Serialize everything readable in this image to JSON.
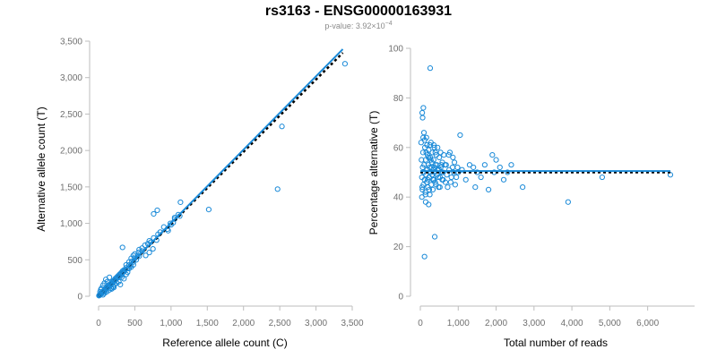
{
  "header": {
    "title": "rs3163 - ENSG00000163931",
    "pvalue_label": "p-value: 3.92×10",
    "pvalue_exponent": "−4"
  },
  "colors": {
    "points": "#1a8ad8",
    "fit_line": "#1a8ad8",
    "reference_line": "#000000",
    "axis": "#bdbdbd",
    "tick_text": "#707070"
  },
  "chart_data": [
    {
      "type": "scatter",
      "title": "",
      "xlabel": "Reference allele count (C)",
      "ylabel": "Alternative allele count (T)",
      "xlim": [
        0,
        3500
      ],
      "ylim": [
        0,
        3500
      ],
      "xticks": [
        0,
        500,
        1000,
        1500,
        2000,
        2500,
        3000,
        3500
      ],
      "yticks": [
        0,
        500,
        1000,
        1500,
        2000,
        2500,
        3000,
        3500
      ],
      "xtick_labels": [
        "0",
        "500",
        "1,000",
        "1,500",
        "2,000",
        "2,500",
        "3,000",
        "3,500"
      ],
      "ytick_labels": [
        "0",
        "500",
        "1,000",
        "1,500",
        "2,000",
        "2,500",
        "3,000",
        "3,500"
      ],
      "grid": false,
      "fit_line": {
        "x": [
          0,
          3370
        ],
        "y": [
          0,
          3390
        ]
      },
      "reference_line": {
        "x": [
          0,
          3370
        ],
        "y": [
          0,
          3340
        ],
        "style": "dashed"
      },
      "points": [
        [
          5,
          8
        ],
        [
          10,
          12
        ],
        [
          15,
          20
        ],
        [
          20,
          18
        ],
        [
          25,
          30
        ],
        [
          30,
          28
        ],
        [
          35,
          40
        ],
        [
          40,
          35
        ],
        [
          45,
          50
        ],
        [
          50,
          48
        ],
        [
          55,
          60
        ],
        [
          60,
          55
        ],
        [
          65,
          70
        ],
        [
          70,
          72
        ],
        [
          75,
          65
        ],
        [
          80,
          85
        ],
        [
          85,
          90
        ],
        [
          90,
          80
        ],
        [
          95,
          100
        ],
        [
          100,
          105
        ],
        [
          105,
          95
        ],
        [
          110,
          120
        ],
        [
          115,
          110
        ],
        [
          120,
          130
        ],
        [
          125,
          118
        ],
        [
          130,
          140
        ],
        [
          140,
          135
        ],
        [
          150,
          160
        ],
        [
          160,
          150
        ],
        [
          170,
          175
        ],
        [
          180,
          170
        ],
        [
          190,
          200
        ],
        [
          200,
          190
        ],
        [
          210,
          215
        ],
        [
          220,
          210
        ],
        [
          230,
          240
        ],
        [
          240,
          235
        ],
        [
          250,
          260
        ],
        [
          260,
          250
        ],
        [
          270,
          280
        ],
        [
          280,
          270
        ],
        [
          290,
          300
        ],
        [
          300,
          295
        ],
        [
          310,
          320
        ],
        [
          320,
          310
        ],
        [
          330,
          345
        ],
        [
          340,
          330
        ],
        [
          350,
          360
        ],
        [
          360,
          350
        ],
        [
          380,
          390
        ],
        [
          400,
          380
        ],
        [
          420,
          430
        ],
        [
          440,
          420
        ],
        [
          460,
          480
        ],
        [
          480,
          470
        ],
        [
          500,
          520
        ],
        [
          520,
          500
        ],
        [
          540,
          560
        ],
        [
          560,
          550
        ],
        [
          600,
          620
        ],
        [
          20,
          60
        ],
        [
          30,
          90
        ],
        [
          40,
          110
        ],
        [
          60,
          150
        ],
        [
          80,
          180
        ],
        [
          100,
          230
        ],
        [
          120,
          200
        ],
        [
          150,
          260
        ],
        [
          170,
          110
        ],
        [
          200,
          130
        ],
        [
          220,
          160
        ],
        [
          250,
          180
        ],
        [
          60,
          20
        ],
        [
          80,
          40
        ],
        [
          110,
          60
        ],
        [
          140,
          80
        ],
        [
          180,
          100
        ],
        [
          210,
          120
        ],
        [
          280,
          200
        ],
        [
          300,
          160
        ],
        [
          320,
          260
        ],
        [
          350,
          240
        ],
        [
          380,
          300
        ],
        [
          400,
          330
        ],
        [
          420,
          380
        ],
        [
          450,
          400
        ],
        [
          480,
          430
        ],
        [
          380,
          430
        ],
        [
          420,
          470
        ],
        [
          450,
          520
        ],
        [
          480,
          560
        ],
        [
          500,
          580
        ],
        [
          550,
          600
        ],
        [
          330,
          670
        ],
        [
          560,
          640
        ],
        [
          600,
          660
        ],
        [
          640,
          700
        ],
        [
          680,
          720
        ],
        [
          700,
          760
        ],
        [
          720,
          740
        ],
        [
          650,
          560
        ],
        [
          700,
          600
        ],
        [
          750,
          650
        ],
        [
          800,
          770
        ],
        [
          760,
          800
        ],
        [
          820,
          850
        ],
        [
          850,
          880
        ],
        [
          900,
          950
        ],
        [
          950,
          920
        ],
        [
          990,
          1000
        ],
        [
          1000,
          980
        ],
        [
          1050,
          1080
        ],
        [
          1100,
          1120
        ],
        [
          1120,
          1100
        ],
        [
          760,
          1130
        ],
        [
          810,
          1180
        ],
        [
          1130,
          1290
        ],
        [
          960,
          900
        ],
        [
          1030,
          1010
        ],
        [
          1050,
          1060
        ],
        [
          1520,
          1190
        ],
        [
          2470,
          1470
        ],
        [
          2530,
          2330
        ],
        [
          3400,
          3190
        ]
      ]
    },
    {
      "type": "scatter",
      "title": "",
      "xlabel": "Total number of reads",
      "ylabel": "Percentage alternative (T)",
      "xlim": [
        0,
        6600
      ],
      "ylim": [
        0,
        100
      ],
      "xticks": [
        0,
        1000,
        2000,
        3000,
        4000,
        5000,
        6000
      ],
      "yticks": [
        0,
        20,
        40,
        60,
        80,
        100
      ],
      "xtick_labels": [
        "0",
        "1,000",
        "2,000",
        "3,000",
        "4,000",
        "5,000",
        "6,000"
      ],
      "ytick_labels": [
        "0",
        "20",
        "40",
        "60",
        "80",
        "100"
      ],
      "grid": false,
      "fit_line": {
        "x": [
          0,
          6600
        ],
        "y": [
          50.5,
          50.5
        ]
      },
      "reference_line": {
        "x": [
          0,
          6600
        ],
        "y": [
          50,
          50
        ],
        "style": "dashed"
      },
      "points": [
        [
          260,
          92
        ],
        [
          80,
          76
        ],
        [
          50,
          74
        ],
        [
          60,
          72
        ],
        [
          110,
          16
        ],
        [
          380,
          24
        ],
        [
          140,
          38
        ],
        [
          220,
          37
        ],
        [
          3900,
          38
        ],
        [
          20,
          62
        ],
        [
          30,
          55
        ],
        [
          40,
          48
        ],
        [
          50,
          44
        ],
        [
          60,
          52
        ],
        [
          70,
          58
        ],
        [
          80,
          45
        ],
        [
          90,
          50
        ],
        [
          100,
          53
        ],
        [
          110,
          47
        ],
        [
          120,
          60
        ],
        [
          130,
          42
        ],
        [
          140,
          55
        ],
        [
          150,
          49
        ],
        [
          160,
          64
        ],
        [
          170,
          46
        ],
        [
          180,
          51
        ],
        [
          190,
          57
        ],
        [
          200,
          44
        ],
        [
          210,
          53
        ],
        [
          220,
          59
        ],
        [
          230,
          48
        ],
        [
          240,
          52
        ],
        [
          250,
          41
        ],
        [
          260,
          56
        ],
        [
          270,
          50
        ],
        [
          280,
          62
        ],
        [
          290,
          45
        ],
        [
          300,
          54
        ],
        [
          310,
          49
        ],
        [
          320,
          58
        ],
        [
          330,
          43
        ],
        [
          340,
          51
        ],
        [
          350,
          55
        ],
        [
          360,
          47
        ],
        [
          370,
          60
        ],
        [
          380,
          52
        ],
        [
          390,
          46
        ],
        [
          400,
          53
        ],
        [
          420,
          57
        ],
        [
          440,
          49
        ],
        [
          460,
          51
        ],
        [
          480,
          44
        ],
        [
          500,
          56
        ],
        [
          520,
          48
        ],
        [
          540,
          52
        ],
        [
          560,
          50
        ],
        [
          580,
          54
        ],
        [
          600,
          47
        ],
        [
          650,
          53
        ],
        [
          700,
          49
        ],
        [
          750,
          57
        ],
        [
          800,
          46
        ],
        [
          850,
          52
        ],
        [
          900,
          54
        ],
        [
          950,
          48
        ],
        [
          1000,
          50
        ],
        [
          1050,
          65
        ],
        [
          1100,
          51
        ],
        [
          1200,
          47
        ],
        [
          1300,
          53
        ],
        [
          1400,
          52
        ],
        [
          1450,
          44
        ],
        [
          1500,
          50
        ],
        [
          1600,
          48
        ],
        [
          1700,
          53
        ],
        [
          1800,
          43
        ],
        [
          1900,
          57
        ],
        [
          1950,
          50
        ],
        [
          2000,
          55
        ],
        [
          2100,
          52
        ],
        [
          2200,
          47
        ],
        [
          2300,
          50
        ],
        [
          2400,
          53
        ],
        [
          2700,
          44
        ],
        [
          4800,
          48
        ],
        [
          6600,
          49
        ],
        [
          40,
          40
        ],
        [
          55,
          43
        ],
        [
          75,
          64
        ],
        [
          95,
          66
        ],
        [
          115,
          63
        ],
        [
          135,
          41
        ],
        [
          155,
          58
        ],
        [
          175,
          61
        ],
        [
          195,
          47
        ],
        [
          215,
          56
        ],
        [
          235,
          43
        ],
        [
          255,
          61
        ],
        [
          275,
          55
        ],
        [
          295,
          52
        ],
        [
          315,
          49
        ],
        [
          335,
          47
        ],
        [
          355,
          61
        ],
        [
          375,
          50
        ],
        [
          395,
          58
        ],
        [
          415,
          45
        ],
        [
          435,
          53
        ],
        [
          455,
          60
        ],
        [
          475,
          48
        ],
        [
          495,
          51
        ],
        [
          515,
          44
        ],
        [
          535,
          58
        ],
        [
          555,
          53
        ],
        [
          575,
          47
        ],
        [
          595,
          50
        ],
        [
          620,
          57
        ],
        [
          660,
          46
        ],
        [
          680,
          53
        ],
        [
          720,
          44
        ],
        [
          760,
          51
        ],
        [
          780,
          58
        ],
        [
          820,
          48
        ],
        [
          860,
          56
        ],
        [
          880,
          50
        ],
        [
          920,
          45
        ],
        [
          980,
          52
        ]
      ]
    }
  ]
}
